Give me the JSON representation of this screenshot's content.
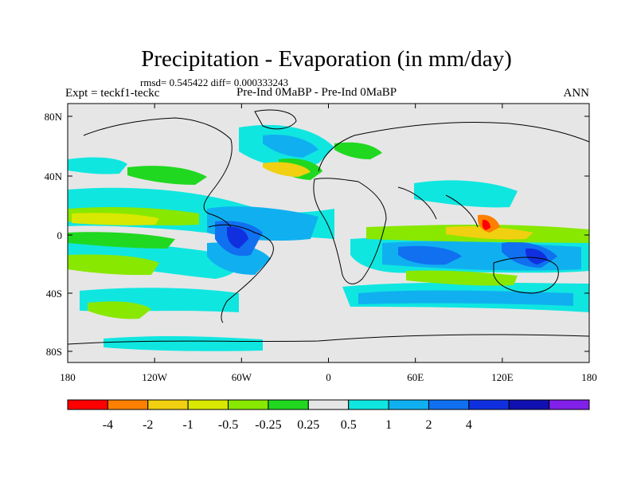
{
  "header": {
    "title": "Precipitation - Evaporation (in mm/day)",
    "stats": "rmsd= 0.545422 diff= 0.000333243",
    "experiment": "Expt = teckf1-teckc",
    "comparison": "Pre-Ind 0MaBP - Pre-Ind 0MaBP",
    "season": "ANN"
  },
  "axes": {
    "lat_labels": [
      "80N",
      "40N",
      "0",
      "40S",
      "80S"
    ],
    "lon_labels": [
      "180",
      "120W",
      "60W",
      "0",
      "60E",
      "120E",
      "180"
    ]
  },
  "colorbar": {
    "colors": [
      "#ff0000",
      "#ff8000",
      "#f0d010",
      "#d8e800",
      "#88e800",
      "#20d820",
      "#e6e6e6",
      "#10e6e0",
      "#10b0f0",
      "#1070f0",
      "#1030e0",
      "#1010b0",
      "#8020e8"
    ],
    "labels": [
      "-4",
      "-2",
      "-1",
      "-0.5",
      "-0.25",
      "0.25",
      "0.5",
      "1",
      "2",
      "4"
    ]
  }
}
